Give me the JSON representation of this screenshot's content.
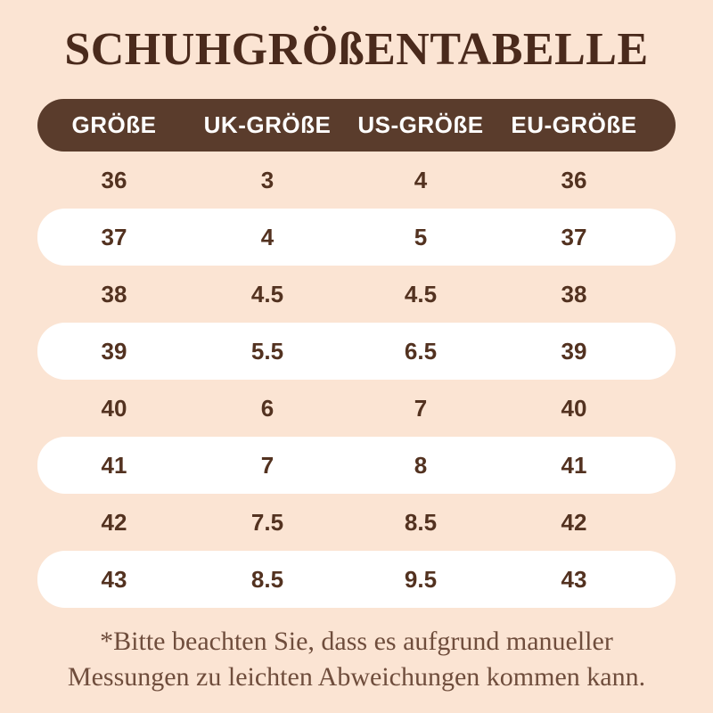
{
  "colors": {
    "background": "#fbe4d3",
    "header_bg": "#5a3c2c",
    "header_fg": "#ffffff",
    "row_alt_bg": "#ffffff",
    "cell_fg": "#533220",
    "title_fg": "#4a2a1c",
    "note_fg": "#6f4d3c"
  },
  "title": "SCHUHGRÖßENTABELLE",
  "table": {
    "columns": [
      "GRÖßE",
      "UK-GRÖßE",
      "US-GRÖßE",
      "EU-GRÖßE"
    ],
    "rows": [
      [
        "36",
        "3",
        "4",
        "36"
      ],
      [
        "37",
        "4",
        "5",
        "37"
      ],
      [
        "38",
        "4.5",
        "4.5",
        "38"
      ],
      [
        "39",
        "5.5",
        "6.5",
        "39"
      ],
      [
        "40",
        "6",
        "7",
        "40"
      ],
      [
        "41",
        "7",
        "8",
        "41"
      ],
      [
        "42",
        "7.5",
        "8.5",
        "42"
      ],
      [
        "43",
        "8.5",
        "9.5",
        "43"
      ]
    ]
  },
  "footnote": {
    "line1": "*Bitte beachten Sie, dass es aufgrund manueller",
    "line2": "Messungen zu leichten Abweichungen kommen kann."
  },
  "chart_data": {
    "type": "table",
    "title": "SCHUHGRÖßENTABELLE",
    "columns": [
      "GRÖßE",
      "UK-GRÖßE",
      "US-GRÖßE",
      "EU-GRÖßE"
    ],
    "rows": [
      [
        "36",
        "3",
        "4",
        "36"
      ],
      [
        "37",
        "4",
        "5",
        "37"
      ],
      [
        "38",
        "4.5",
        "4.5",
        "38"
      ],
      [
        "39",
        "5.5",
        "6.5",
        "39"
      ],
      [
        "40",
        "6",
        "7",
        "40"
      ],
      [
        "41",
        "7",
        "8",
        "41"
      ],
      [
        "42",
        "7.5",
        "8.5",
        "42"
      ],
      [
        "43",
        "8.5",
        "9.5",
        "43"
      ]
    ],
    "notes": "*Bitte beachten Sie, dass es aufgrund manueller Messungen zu leichten Abweichungen kommen kann.",
    "layout": "header row dark brown pill; data rows alternate transparent peach / white pill"
  }
}
